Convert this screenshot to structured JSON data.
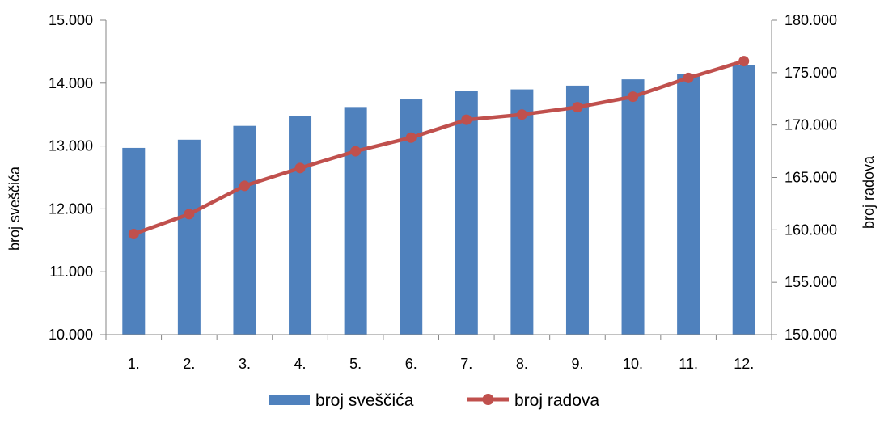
{
  "chart_data": {
    "type": "bar+line",
    "categories": [
      "1.",
      "2.",
      "3.",
      "4.",
      "5.",
      "6.",
      "7.",
      "8.",
      "9.",
      "10.",
      "11.",
      "12."
    ],
    "series": [
      {
        "name": "broj sveščića",
        "type": "bar",
        "axis": "left",
        "color": "#4F81BD",
        "values": [
          12970,
          13100,
          13320,
          13480,
          13620,
          13740,
          13870,
          13900,
          13960,
          14060,
          14150,
          14290
        ]
      },
      {
        "name": "broj radova",
        "type": "line",
        "axis": "right",
        "color": "#C0504D",
        "values": [
          159600,
          161500,
          164200,
          165900,
          167500,
          168800,
          170500,
          171000,
          171700,
          172700,
          174500,
          176100
        ]
      }
    ],
    "y_left": {
      "label": "broj sveščića",
      "lim": [
        10000,
        15000
      ],
      "ticks": [
        "10.000",
        "11.000",
        "12.000",
        "13.000",
        "14.000",
        "15.000"
      ]
    },
    "y_right": {
      "label": "broj radova",
      "lim": [
        150000,
        180000
      ],
      "ticks": [
        "150.000",
        "155.000",
        "160.000",
        "165.000",
        "170.000",
        "175.000",
        "180.000"
      ]
    },
    "grid": false,
    "legend": "bottom"
  }
}
